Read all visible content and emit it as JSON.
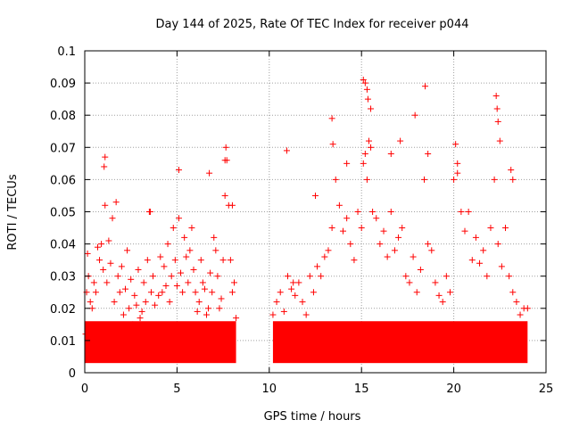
{
  "chart_data": {
    "type": "scatter",
    "title": "Day 144 of 2025, Rate Of TEC Index for receiver p044",
    "xlabel": "GPS time / hours",
    "ylabel": "ROTI / TECUs",
    "xlim": [
      0,
      25
    ],
    "ylim": [
      0,
      0.1
    ],
    "xticks": [
      "0",
      "5",
      "10",
      "15",
      "20",
      "25"
    ],
    "yticks": [
      "0",
      "0.01",
      "0.02",
      "0.03",
      "0.04",
      "0.05",
      "0.06",
      "0.07",
      "0.08",
      "0.09",
      "0.1"
    ],
    "grid": true,
    "marker": "plus",
    "color": "#ff0000",
    "series": [
      {
        "x": [
          0.05,
          0.1,
          0.15,
          0.2,
          0.3,
          0.4,
          0.5,
          0.6,
          0.7,
          0.8,
          0.9,
          1.0,
          1.1,
          1.2,
          1.3,
          1.4,
          1.5,
          1.6,
          1.7,
          1.8,
          1.9,
          2.0,
          2.1,
          2.2,
          2.3,
          2.4,
          2.5,
          2.6,
          2.7,
          2.8,
          2.9,
          3.0,
          3.1,
          3.2,
          3.3,
          3.4,
          3.5,
          3.6,
          3.7,
          3.8,
          3.9,
          4.0,
          4.1,
          4.2,
          4.3,
          4.4,
          4.5,
          4.6,
          4.7,
          4.8,
          4.9,
          5.0,
          5.1,
          5.2,
          5.3,
          5.4,
          5.5,
          5.6,
          5.7,
          5.8,
          5.9,
          6.0,
          6.1,
          6.2,
          6.3,
          6.4,
          6.5,
          6.6,
          6.7,
          6.8,
          6.9,
          7.0,
          7.1,
          7.2,
          7.3,
          7.4,
          7.5,
          7.6,
          7.7,
          7.8,
          7.9,
          8.0,
          8.1,
          8.2,
          10.2,
          10.4,
          10.6,
          10.8,
          11.0,
          11.2,
          11.4,
          11.6,
          11.8,
          12.0,
          12.2,
          12.4,
          12.6,
          12.8,
          13.0,
          13.2,
          13.4,
          13.6,
          13.8,
          14.0,
          14.2,
          14.4,
          14.6,
          14.8,
          15.0,
          15.1,
          15.2,
          15.3,
          15.4,
          15.5,
          15.6,
          15.8,
          16.0,
          16.2,
          16.4,
          16.6,
          16.8,
          17.0,
          17.2,
          17.4,
          17.6,
          17.8,
          18.0,
          18.2,
          18.4,
          18.6,
          18.8,
          19.0,
          19.2,
          19.4,
          19.6,
          19.8,
          20.0,
          20.2,
          20.4,
          20.6,
          20.8,
          21.0,
          21.2,
          21.4,
          21.6,
          21.8,
          22.0,
          22.2,
          22.4,
          22.6,
          22.8,
          23.0,
          23.2,
          23.4,
          23.6,
          23.8,
          24.0,
          1.05,
          1.1,
          3.55,
          5.1,
          6.75,
          7.6,
          7.65,
          8.0,
          10.95,
          11.3,
          12.5,
          13.4,
          13.45,
          14.2,
          15.1,
          15.2,
          15.3,
          15.35,
          15.5,
          16.6,
          17.1,
          17.9,
          18.45,
          18.6,
          20.1,
          20.2,
          22.3,
          22.35,
          22.4,
          22.5,
          23.1,
          23.2
        ],
        "y": [
          0.012,
          0.025,
          0.037,
          0.03,
          0.022,
          0.02,
          0.028,
          0.025,
          0.039,
          0.035,
          0.04,
          0.032,
          0.052,
          0.028,
          0.041,
          0.034,
          0.048,
          0.022,
          0.053,
          0.03,
          0.025,
          0.033,
          0.018,
          0.026,
          0.038,
          0.02,
          0.029,
          0.015,
          0.024,
          0.021,
          0.032,
          0.017,
          0.019,
          0.028,
          0.022,
          0.035,
          0.05,
          0.025,
          0.03,
          0.021,
          0.014,
          0.024,
          0.036,
          0.025,
          0.033,
          0.027,
          0.04,
          0.022,
          0.03,
          0.045,
          0.035,
          0.027,
          0.048,
          0.031,
          0.025,
          0.042,
          0.036,
          0.028,
          0.038,
          0.045,
          0.032,
          0.025,
          0.019,
          0.022,
          0.035,
          0.028,
          0.026,
          0.018,
          0.02,
          0.031,
          0.025,
          0.042,
          0.038,
          0.03,
          0.02,
          0.023,
          0.035,
          0.055,
          0.066,
          0.052,
          0.035,
          0.025,
          0.028,
          0.017,
          0.018,
          0.022,
          0.025,
          0.019,
          0.03,
          0.026,
          0.024,
          0.028,
          0.022,
          0.018,
          0.03,
          0.025,
          0.033,
          0.03,
          0.036,
          0.038,
          0.045,
          0.06,
          0.052,
          0.044,
          0.048,
          0.04,
          0.035,
          0.05,
          0.045,
          0.065,
          0.068,
          0.06,
          0.072,
          0.07,
          0.05,
          0.048,
          0.04,
          0.044,
          0.036,
          0.05,
          0.038,
          0.042,
          0.045,
          0.03,
          0.028,
          0.036,
          0.025,
          0.032,
          0.06,
          0.04,
          0.038,
          0.028,
          0.024,
          0.022,
          0.03,
          0.025,
          0.06,
          0.065,
          0.05,
          0.044,
          0.05,
          0.035,
          0.042,
          0.034,
          0.038,
          0.03,
          0.045,
          0.06,
          0.04,
          0.033,
          0.045,
          0.03,
          0.025,
          0.022,
          0.018,
          0.02,
          0.02,
          0.064,
          0.067,
          0.05,
          0.063,
          0.062,
          0.066,
          0.07,
          0.052,
          0.069,
          0.028,
          0.055,
          0.079,
          0.071,
          0.065,
          0.091,
          0.09,
          0.088,
          0.085,
          0.082,
          0.068,
          0.072,
          0.08,
          0.089,
          0.068,
          0.071,
          0.062,
          0.086,
          0.082,
          0.078,
          0.072,
          0.063,
          0.06
        ]
      }
    ],
    "band": {
      "segments": [
        [
          0.0,
          8.2
        ],
        [
          10.2,
          24.0
        ]
      ],
      "lower": 0.003,
      "upper": 0.016
    }
  }
}
